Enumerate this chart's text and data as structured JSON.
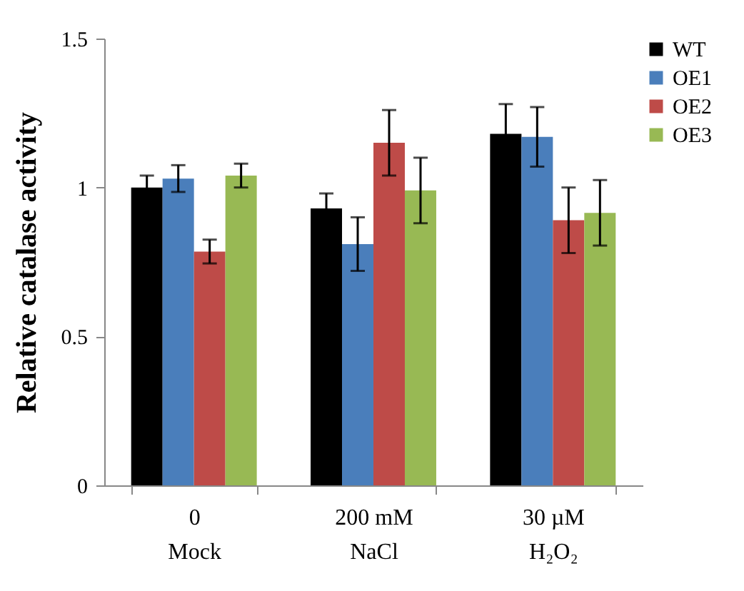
{
  "chart_data": {
    "type": "bar",
    "ylabel": "Relative catalase activity",
    "categories": [
      "0\nMock",
      "200 mM\nNaCl",
      "30 µM\nH₂O₂"
    ],
    "series": [
      {
        "name": "WT",
        "color": "#000000",
        "values": [
          1.0,
          0.93,
          1.18
        ],
        "errors": [
          0.04,
          0.05,
          0.1
        ]
      },
      {
        "name": "OE1",
        "color": "#4a7ebb",
        "values": [
          1.03,
          0.81,
          1.17
        ],
        "errors": [
          0.045,
          0.09,
          0.1
        ]
      },
      {
        "name": "OE2",
        "color": "#be4b48",
        "values": [
          0.785,
          1.15,
          0.89
        ],
        "errors": [
          0.04,
          0.11,
          0.11
        ]
      },
      {
        "name": "OE3",
        "color": "#98b954",
        "values": [
          1.04,
          0.99,
          0.915
        ],
        "errors": [
          0.04,
          0.11,
          0.11
        ]
      }
    ],
    "ylim": [
      0,
      1.5
    ],
    "yticks": [
      0,
      0.5,
      1,
      1.5
    ],
    "grid": false,
    "legend": "right"
  }
}
